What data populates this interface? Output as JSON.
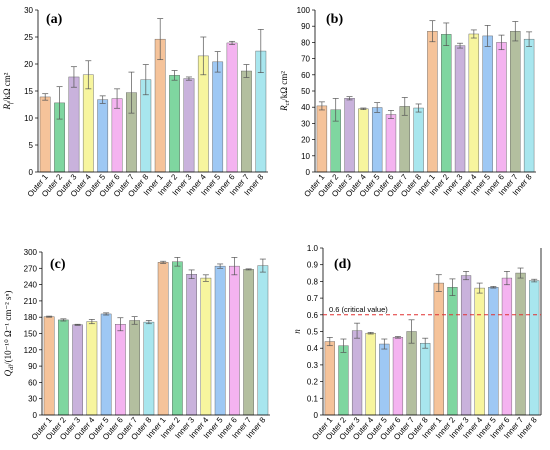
{
  "colors": [
    "#f5c39a",
    "#7fd6a0",
    "#c9b2dc",
    "#f7f59e",
    "#9ec8f4",
    "#f4b3f0",
    "#b3bf9f",
    "#a8e6ee"
  ],
  "chart_data": [
    {
      "type": "bar",
      "panel": "(a)",
      "ylabel": "R_f /kΩ cm²",
      "ylabel_main": "R",
      "ylabel_sub": "f",
      "ylabel_rest": "/kΩ cm²",
      "ylim": [
        0,
        30
      ],
      "yticks": [
        0,
        5,
        10,
        15,
        20,
        25,
        30
      ],
      "categories": [
        "Outer 1",
        "Outer 2",
        "Outer 3",
        "Outer 4",
        "Outer 5",
        "Outer 6",
        "Outer 7",
        "Outer 8",
        "Inner 1",
        "Inner 2",
        "Inner 3",
        "Inner 4",
        "Inner 5",
        "Inner 6",
        "Inner 7",
        "Inner 8"
      ],
      "values": [
        13.9,
        12.8,
        17.6,
        18.0,
        13.4,
        13.6,
        14.7,
        17.1,
        24.6,
        17.9,
        17.3,
        21.5,
        20.4,
        23.9,
        18.7,
        22.4
      ],
      "errors": [
        0.6,
        3.0,
        1.9,
        2.6,
        0.7,
        1.8,
        3.8,
        2.8,
        3.8,
        0.9,
        0.3,
        3.5,
        1.9,
        0.3,
        1.2,
        4.0
      ],
      "grid": false
    },
    {
      "type": "bar",
      "panel": "(b)",
      "ylabel": "R_ct /kΩ cm²",
      "ylabel_main": "R",
      "ylabel_sub": "ct",
      "ylabel_rest": "/kΩ cm²",
      "ylim": [
        0,
        100
      ],
      "yticks": [
        0,
        10,
        20,
        30,
        40,
        50,
        60,
        70,
        80,
        90,
        100
      ],
      "categories": [
        "Outer 1",
        "Outer 2",
        "Outer 3",
        "Outer 4",
        "Outer 5",
        "Outer 6",
        "Outer 7",
        "Outer 8",
        "Inner 1",
        "Inner 2",
        "Inner 3",
        "Inner 4",
        "Inner 5",
        "Inner 6",
        "Inner 7",
        "Inner 8"
      ],
      "values": [
        40.8,
        38.4,
        45.5,
        39.0,
        39.8,
        35.5,
        40.5,
        39.5,
        86.9,
        85.0,
        78.0,
        85.2,
        84.0,
        80.0,
        86.9,
        82.0
      ],
      "errors": [
        2.5,
        7.0,
        1.0,
        0.5,
        3.0,
        2.5,
        5.5,
        2.5,
        6.5,
        7.0,
        1.5,
        2.5,
        6.5,
        4.5,
        6.0,
        4.5
      ],
      "grid": false
    },
    {
      "type": "bar",
      "panel": "(c)",
      "ylabel": "Q_dl /(10^-10 Ω⁻¹ cm⁻² sⁿ)",
      "ylabel_main": "Q",
      "ylabel_sub": "dl",
      "ylabel_rest": "/(10⁻¹⁰ Ω⁻¹ cm⁻² sⁿ)",
      "ylim": [
        0,
        300
      ],
      "yticks": [
        0,
        30,
        60,
        90,
        120,
        150,
        180,
        210,
        240,
        270,
        300
      ],
      "categories": [
        "Outer 1",
        "Outer 2",
        "Outer 3",
        "Outer 4",
        "Outer 5",
        "Outer 6",
        "Outer 7",
        "Outer 8",
        "Inner 1",
        "Inner 2",
        "Inner 3",
        "Inner 4",
        "Inner 5",
        "Inner 6",
        "Inner 7",
        "Inner 8"
      ],
      "values": [
        181,
        175,
        166,
        172,
        186,
        167,
        174,
        171,
        281,
        282,
        259,
        252,
        274,
        274,
        268,
        275
      ],
      "errors": [
        1,
        2,
        1,
        4,
        2,
        12,
        7,
        3,
        2,
        8,
        8,
        6,
        4,
        16,
        1,
        12
      ],
      "grid": false
    },
    {
      "type": "bar",
      "panel": "(d)",
      "ylabel": "n",
      "ylabel_main": "n",
      "ylabel_sub": "",
      "ylabel_rest": "",
      "ylim": [
        0,
        1.0
      ],
      "yticks": [
        0,
        0.1,
        0.2,
        0.3,
        0.4,
        0.5,
        0.6,
        0.7,
        0.8,
        0.9,
        1.0
      ],
      "categories": [
        "Outer 1",
        "Outer 2",
        "Outer 3",
        "Outer 4",
        "Outer 5",
        "Outer 6",
        "Outer 7",
        "Outer 8",
        "Inner 1",
        "Inner 2",
        "Inner 3",
        "Inner 4",
        "Inner 5",
        "Inner 6",
        "Inner 7",
        "Inner 8"
      ],
      "values": [
        0.44,
        0.415,
        0.505,
        0.49,
        0.425,
        0.465,
        0.5,
        0.43,
        0.79,
        0.765,
        0.835,
        0.76,
        0.765,
        0.82,
        0.85,
        0.805
      ],
      "errors": [
        0.025,
        0.04,
        0.045,
        0.005,
        0.03,
        0.005,
        0.07,
        0.03,
        0.05,
        0.05,
        0.025,
        0.03,
        0.005,
        0.04,
        0.03,
        0.008
      ],
      "reference_line": {
        "value": 0.6,
        "label": "0.6 (critical value)",
        "color": "#e03030"
      },
      "grid": false
    }
  ]
}
